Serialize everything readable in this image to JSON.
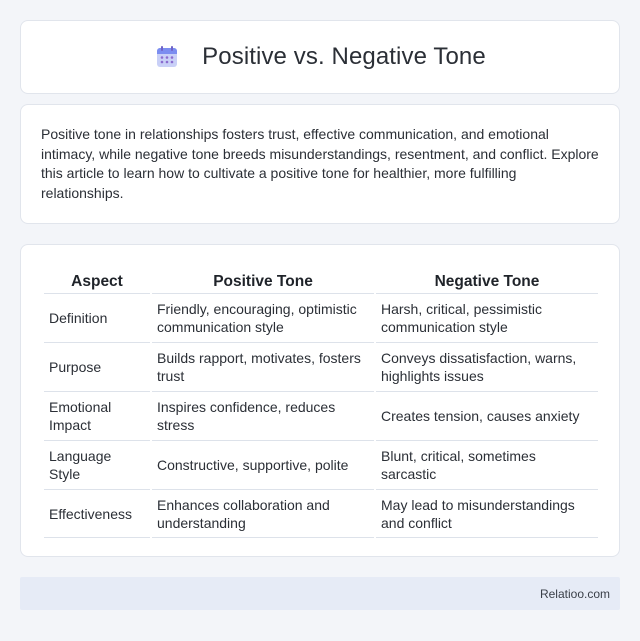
{
  "header": {
    "title": "Positive vs. Negative Tone",
    "icon": "calendar-icon",
    "icon_colors": {
      "top": "#7b8df0",
      "body": "#c9d0f7",
      "dots": "#8b6ccf"
    }
  },
  "intro": {
    "text": "Positive tone in relationships fosters trust, effective communication, and emotional intimacy, while negative tone breeds misunderstandings, resentment, and conflict. Explore this article to learn how to cultivate a positive tone for healthier, more fulfilling relationships."
  },
  "table": {
    "headers": [
      "Aspect",
      "Positive Tone",
      "Negative Tone"
    ],
    "rows": [
      [
        "Definition",
        "Friendly, encouraging, optimistic communication style",
        "Harsh, critical, pessimistic communication style"
      ],
      [
        "Purpose",
        "Builds rapport, motivates, fosters trust",
        "Conveys dissatisfaction, warns, highlights issues"
      ],
      [
        "Emotional Impact",
        "Inspires confidence, reduces stress",
        "Creates tension, causes anxiety"
      ],
      [
        "Language Style",
        "Constructive, supportive, polite",
        "Blunt, critical, sometimes sarcastic"
      ],
      [
        "Effectiveness",
        "Enhances collaboration and understanding",
        "May lead to misunderstandings and conflict"
      ]
    ]
  },
  "footer": {
    "text": "Relatioo.com"
  }
}
